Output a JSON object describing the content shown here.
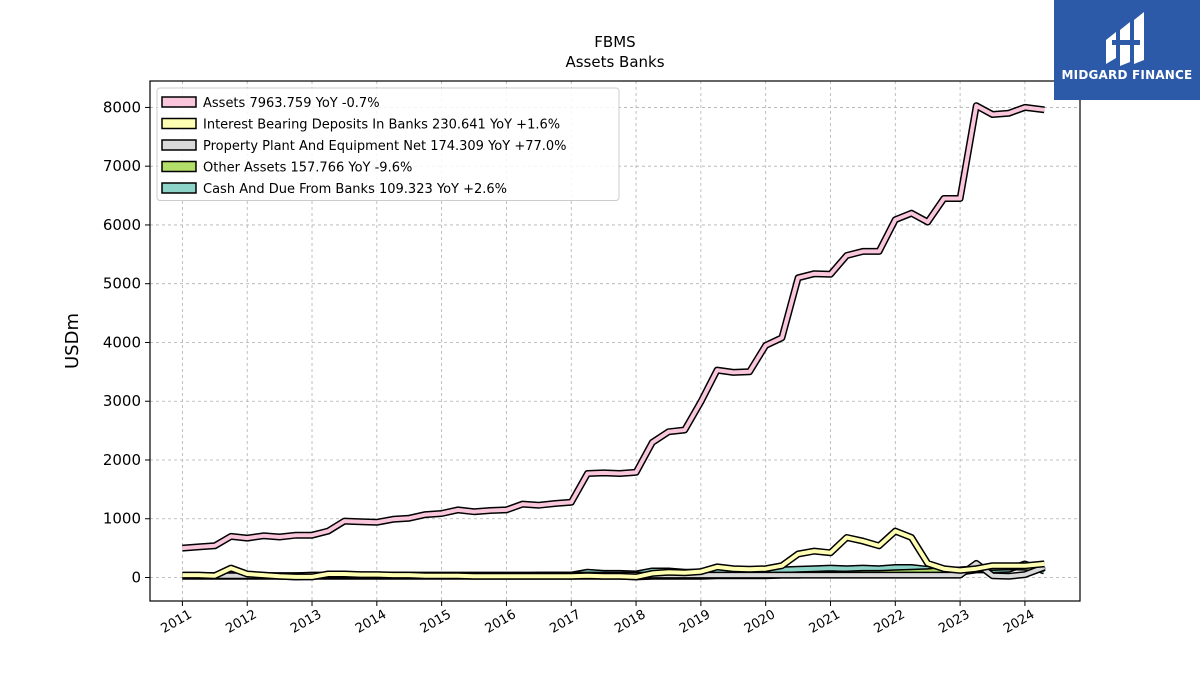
{
  "brand": {
    "name": "MIDGARD FINANCE",
    "color": "#2d5aa8"
  },
  "chart_data": {
    "type": "line",
    "title": "FBMS",
    "subtitle": "Assets Banks",
    "xlabel": "",
    "ylabel": "USDm",
    "xlim": [
      2010.5,
      2024.85
    ],
    "ylim": [
      -400,
      8450
    ],
    "yticks": [
      0,
      1000,
      2000,
      3000,
      4000,
      5000,
      6000,
      7000,
      8000
    ],
    "xticks": [
      "2011",
      "2012",
      "2013",
      "2014",
      "2015",
      "2016",
      "2017",
      "2018",
      "2019",
      "2020",
      "2021",
      "2022",
      "2023",
      "2024"
    ],
    "grid": true,
    "legend_position": "top-left",
    "x": [
      2011.0,
      2011.25,
      2011.5,
      2011.75,
      2012.0,
      2012.25,
      2012.5,
      2012.75,
      2013.0,
      2013.25,
      2013.5,
      2013.75,
      2014.0,
      2014.25,
      2014.5,
      2014.75,
      2015.0,
      2015.25,
      2015.5,
      2015.75,
      2016.0,
      2016.25,
      2016.5,
      2016.75,
      2017.0,
      2017.25,
      2017.5,
      2017.75,
      2018.0,
      2018.25,
      2018.5,
      2018.75,
      2019.0,
      2019.25,
      2019.5,
      2019.75,
      2020.0,
      2020.25,
      2020.5,
      2020.75,
      2021.0,
      2021.25,
      2021.5,
      2021.75,
      2022.0,
      2022.25,
      2022.5,
      2022.75,
      2023.0,
      2023.25,
      2023.5,
      2023.75,
      2024.0,
      2024.3
    ],
    "series": [
      {
        "name": "Assets  7963.759 YoY -0.7%",
        "color": "#f9c6dc",
        "values": [
          500,
          520,
          540,
          700,
          670,
          710,
          690,
          720,
          720,
          790,
          960,
          950,
          940,
          990,
          1010,
          1070,
          1090,
          1150,
          1120,
          1140,
          1150,
          1250,
          1230,
          1260,
          1280,
          1770,
          1780,
          1770,
          1790,
          2300,
          2480,
          2510,
          2990,
          3530,
          3490,
          3500,
          3950,
          4080,
          5100,
          5170,
          5160,
          5480,
          5550,
          5550,
          6090,
          6200,
          6050,
          6450,
          6450,
          8030,
          7880,
          7900,
          8000,
          7960
        ]
      },
      {
        "name": "Interest Bearing Deposits In Banks  230.641 YoY +1.6%",
        "color": "#ffffb3",
        "values": [
          40,
          40,
          30,
          160,
          60,
          40,
          20,
          10,
          10,
          60,
          60,
          50,
          50,
          40,
          40,
          30,
          30,
          30,
          20,
          20,
          20,
          20,
          20,
          20,
          20,
          30,
          20,
          20,
          10,
          70,
          90,
          80,
          100,
          180,
          150,
          140,
          150,
          200,
          400,
          450,
          420,
          680,
          620,
          540,
          790,
          680,
          240,
          150,
          120,
          150,
          200,
          200,
          200,
          231
        ]
      },
      {
        "name": "Property Plant And Equipment Net  174.309 YoY +77.0%",
        "color": "#d9d9d9",
        "values": [
          30,
          30,
          30,
          30,
          30,
          30,
          30,
          30,
          40,
          40,
          40,
          40,
          40,
          40,
          40,
          40,
          40,
          40,
          40,
          40,
          40,
          40,
          40,
          40,
          40,
          40,
          40,
          40,
          40,
          40,
          40,
          40,
          40,
          40,
          40,
          40,
          40,
          40,
          40,
          40,
          40,
          40,
          40,
          40,
          40,
          40,
          40,
          40,
          40,
          240,
          30,
          20,
          50,
          174
        ]
      },
      {
        "name": "Other Assets  157.766 YoY -9.6%",
        "color": "#b3de69",
        "values": [
          20,
          20,
          20,
          20,
          20,
          20,
          20,
          10,
          20,
          20,
          20,
          20,
          20,
          20,
          20,
          20,
          20,
          20,
          20,
          20,
          20,
          20,
          20,
          20,
          20,
          20,
          20,
          20,
          10,
          20,
          20,
          20,
          20,
          30,
          30,
          30,
          30,
          40,
          40,
          50,
          50,
          60,
          70,
          70,
          80,
          90,
          100,
          120,
          130,
          150,
          170,
          180,
          175,
          158
        ]
      },
      {
        "name": "Cash And Due From Banks  109.323 YoY +2.6%",
        "color": "#8dd3c7",
        "values": [
          30,
          30,
          30,
          30,
          30,
          30,
          30,
          30,
          30,
          30,
          30,
          30,
          30,
          30,
          30,
          30,
          30,
          30,
          30,
          30,
          30,
          30,
          40,
          40,
          40,
          90,
          70,
          70,
          60,
          110,
          110,
          90,
          90,
          110,
          110,
          110,
          110,
          130,
          140,
          150,
          160,
          150,
          160,
          150,
          170,
          170,
          140,
          90,
          90,
          130,
          130,
          140,
          230,
          109
        ]
      }
    ]
  }
}
